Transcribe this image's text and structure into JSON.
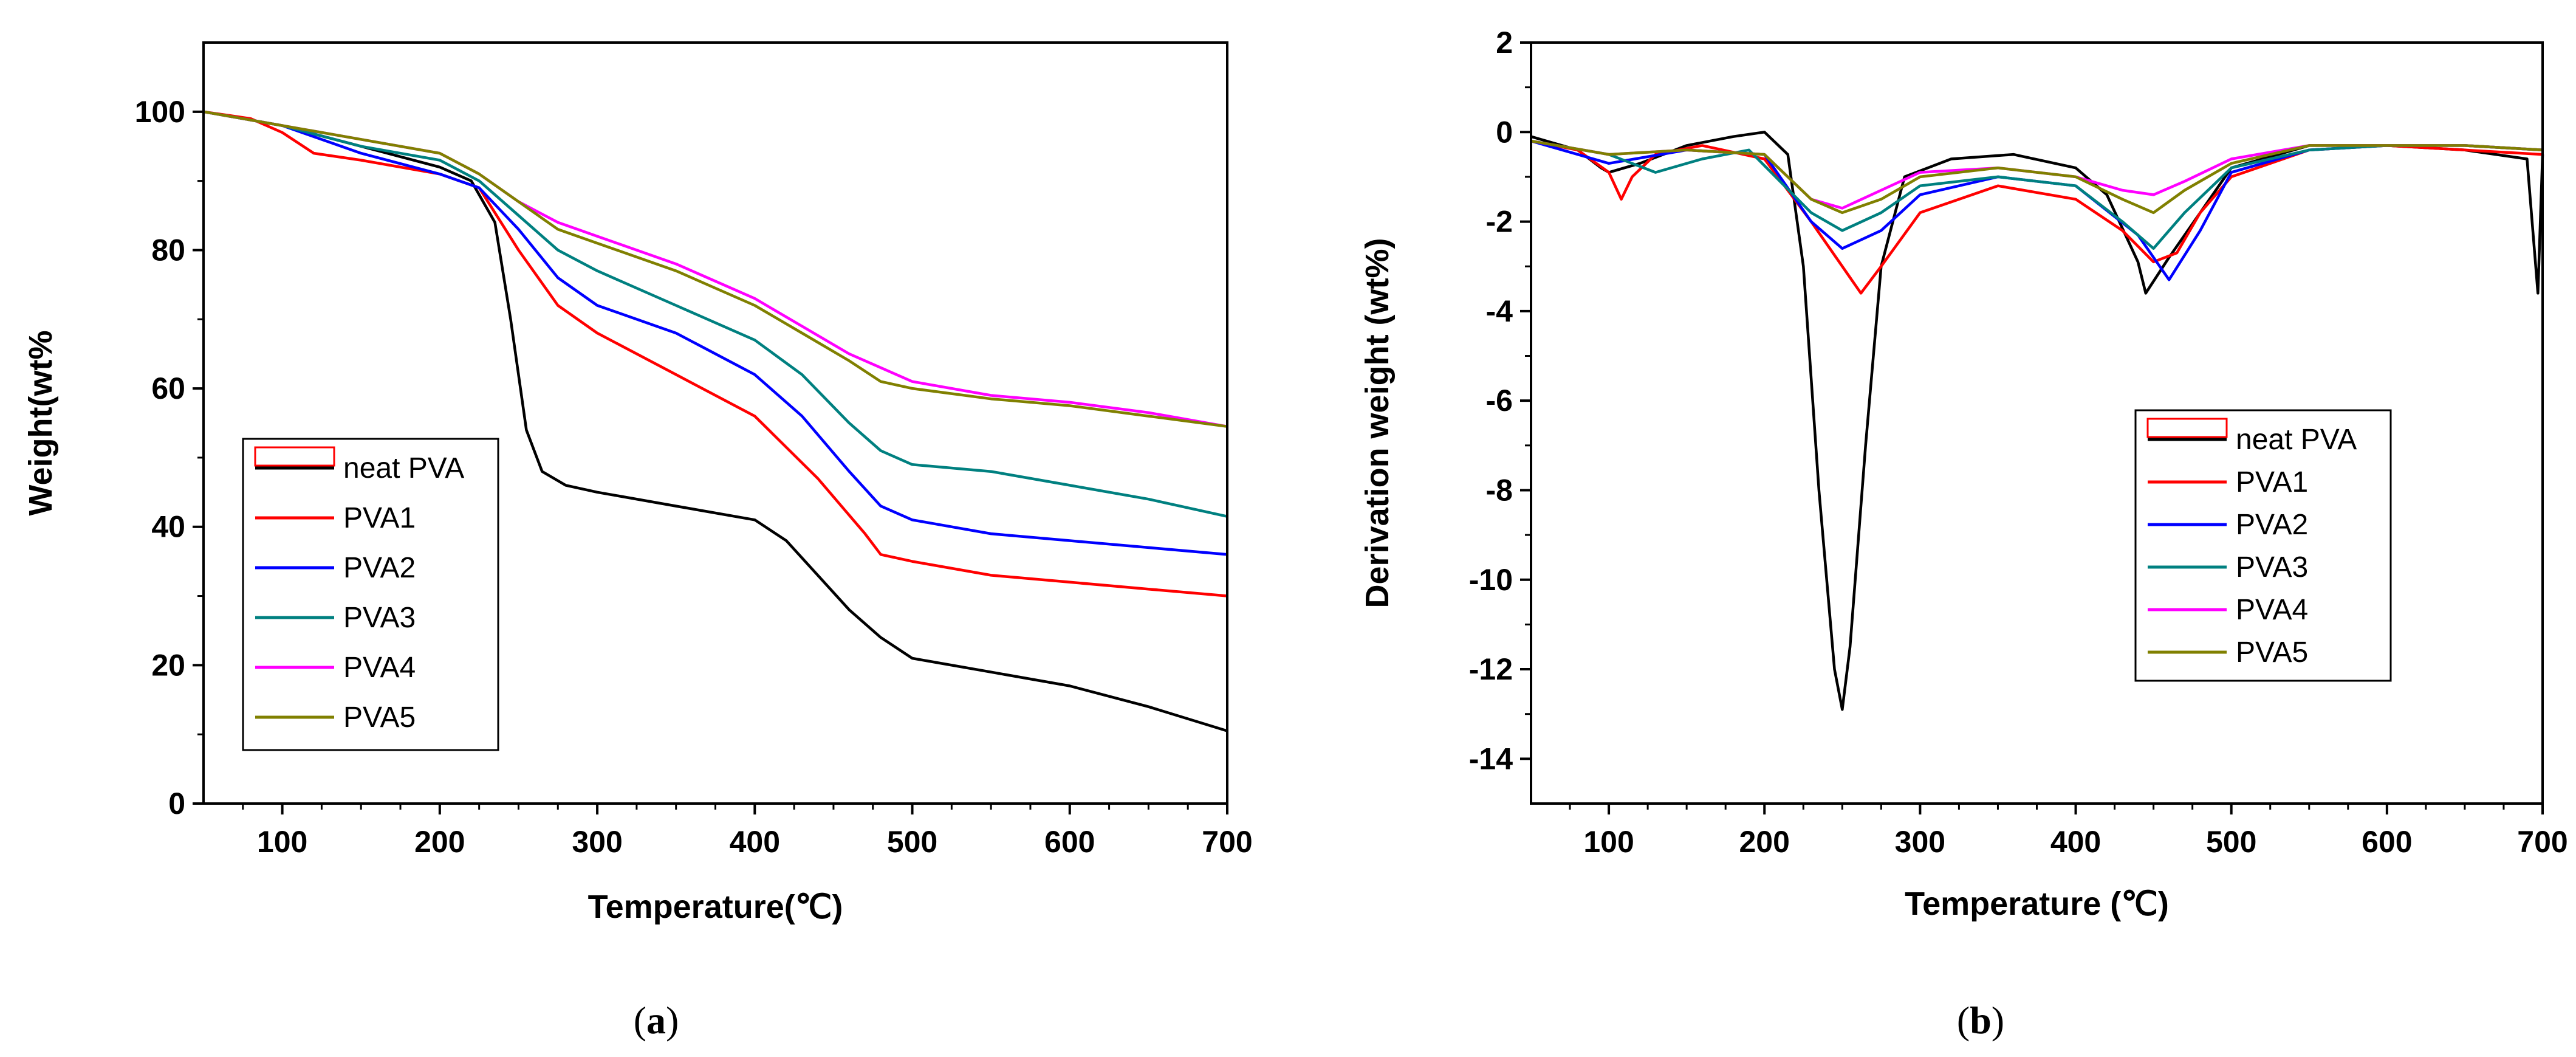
{
  "chart_data": [
    {
      "panel_label": "(a)",
      "panel_letter": "a",
      "type": "line",
      "xlabel": "Temperature(℃)",
      "ylabel": "Weight(wt%",
      "xlim": [
        50,
        700
      ],
      "ylim": [
        0,
        110
      ],
      "xticks": [
        100,
        200,
        300,
        400,
        500,
        600,
        700
      ],
      "yticks": [
        0,
        20,
        40,
        60,
        80,
        100
      ],
      "legend_position": "lower-left",
      "series": [
        {
          "name": "neat PVA",
          "color": "#000000",
          "x": [
            50,
            100,
            150,
            200,
            220,
            235,
            245,
            255,
            265,
            280,
            300,
            350,
            400,
            420,
            440,
            460,
            480,
            500,
            550,
            600,
            650,
            700
          ],
          "y": [
            100,
            98,
            95,
            92,
            90,
            84,
            70,
            54,
            48,
            46,
            45,
            43,
            41,
            38,
            33,
            28,
            24,
            21,
            19,
            17,
            14,
            10.5
          ]
        },
        {
          "name": "PVA1",
          "color": "#ff0000",
          "x": [
            50,
            80,
            100,
            120,
            150,
            200,
            225,
            250,
            275,
            300,
            350,
            400,
            440,
            470,
            480,
            500,
            550,
            600,
            650,
            700
          ],
          "y": [
            100,
            99,
            97,
            94,
            93,
            91,
            89,
            80,
            72,
            68,
            62,
            56,
            47,
            39,
            36,
            35,
            33,
            32,
            31,
            30
          ]
        },
        {
          "name": "PVA2",
          "color": "#0000ff",
          "x": [
            50,
            100,
            150,
            200,
            225,
            250,
            275,
            300,
            350,
            400,
            430,
            460,
            480,
            500,
            550,
            600,
            650,
            700
          ],
          "y": [
            100,
            98,
            94,
            91,
            89,
            83,
            76,
            72,
            68,
            62,
            56,
            48,
            43,
            41,
            39,
            38,
            37,
            36
          ]
        },
        {
          "name": "PVA3",
          "color": "#008080",
          "x": [
            50,
            100,
            150,
            200,
            225,
            250,
            275,
            300,
            350,
            400,
            430,
            460,
            480,
            500,
            550,
            600,
            650,
            700
          ],
          "y": [
            100,
            98,
            95,
            93,
            90,
            85,
            80,
            77,
            72,
            67,
            62,
            55,
            51,
            49,
            48,
            46,
            44,
            41.5
          ]
        },
        {
          "name": "PVA4",
          "color": "#ff00ff",
          "x": [
            50,
            100,
            150,
            200,
            225,
            250,
            275,
            300,
            350,
            400,
            430,
            460,
            480,
            500,
            550,
            600,
            650,
            700
          ],
          "y": [
            100,
            98,
            96,
            94,
            91,
            87,
            84,
            82,
            78,
            73,
            69,
            65,
            63,
            61,
            59,
            58,
            56.5,
            54.5
          ]
        },
        {
          "name": "PVA5",
          "color": "#808000",
          "x": [
            50,
            100,
            150,
            200,
            225,
            250,
            275,
            300,
            350,
            400,
            430,
            460,
            480,
            500,
            550,
            600,
            650,
            700
          ],
          "y": [
            100,
            98,
            96,
            94,
            91,
            87,
            83,
            81,
            77,
            72,
            68,
            64,
            61,
            60,
            58.5,
            57.5,
            56,
            54.5
          ]
        }
      ]
    },
    {
      "panel_label": "(b)",
      "panel_letter": "b",
      "type": "line",
      "xlabel": "Temperature (℃)",
      "ylabel": "Derivation weight (wt%)",
      "xlim": [
        50,
        700
      ],
      "ylim": [
        -15,
        2
      ],
      "xticks": [
        100,
        200,
        300,
        400,
        500,
        600,
        700
      ],
      "yticks": [
        -14,
        -12,
        -10,
        -8,
        -6,
        -4,
        -2,
        0,
        2
      ],
      "legend_position": "center-right",
      "series": [
        {
          "name": "neat PVA",
          "color": "#000000",
          "x": [
            50,
            80,
            95,
            100,
            120,
            150,
            180,
            200,
            215,
            225,
            235,
            245,
            250,
            255,
            265,
            275,
            290,
            320,
            360,
            400,
            420,
            440,
            445,
            460,
            480,
            500,
            550,
            600,
            650,
            690,
            697,
            700
          ],
          "y": [
            -0.1,
            -0.4,
            -0.8,
            -0.9,
            -0.7,
            -0.3,
            -0.1,
            0,
            -0.5,
            -3,
            -8,
            -12,
            -12.9,
            -11.5,
            -7,
            -3,
            -1,
            -0.6,
            -0.5,
            -0.8,
            -1.4,
            -2.9,
            -3.6,
            -2.8,
            -1.8,
            -0.8,
            -0.3,
            -0.3,
            -0.4,
            -0.6,
            -3.6,
            -0.5
          ]
        },
        {
          "name": "PVA1",
          "color": "#ff0000",
          "x": [
            50,
            80,
            100,
            108,
            115,
            130,
            160,
            200,
            230,
            250,
            262,
            275,
            300,
            350,
            400,
            430,
            450,
            465,
            480,
            500,
            550,
            600,
            650,
            700
          ],
          "y": [
            -0.2,
            -0.4,
            -0.9,
            -1.5,
            -1.0,
            -0.5,
            -0.3,
            -0.6,
            -2.0,
            -3.0,
            -3.6,
            -3.0,
            -1.8,
            -1.2,
            -1.5,
            -2.2,
            -2.9,
            -2.7,
            -1.8,
            -1.0,
            -0.4,
            -0.3,
            -0.4,
            -0.5
          ]
        },
        {
          "name": "PVA2",
          "color": "#0000ff",
          "x": [
            50,
            100,
            150,
            200,
            230,
            250,
            275,
            300,
            350,
            400,
            440,
            460,
            480,
            500,
            550,
            600,
            650,
            700
          ],
          "y": [
            -0.2,
            -0.7,
            -0.4,
            -0.5,
            -2.0,
            -2.6,
            -2.2,
            -1.4,
            -1.0,
            -1.2,
            -2.3,
            -3.3,
            -2.2,
            -0.9,
            -0.4,
            -0.3,
            -0.3,
            -0.4
          ]
        },
        {
          "name": "PVA3",
          "color": "#008080",
          "x": [
            50,
            100,
            130,
            160,
            190,
            230,
            250,
            275,
            300,
            350,
            400,
            430,
            450,
            470,
            500,
            550,
            600,
            650,
            700
          ],
          "y": [
            -0.2,
            -0.5,
            -0.9,
            -0.6,
            -0.4,
            -1.8,
            -2.2,
            -1.8,
            -1.2,
            -1.0,
            -1.2,
            -2.0,
            -2.6,
            -1.8,
            -0.8,
            -0.4,
            -0.3,
            -0.3,
            -0.4
          ]
        },
        {
          "name": "PVA4",
          "color": "#ff00ff",
          "x": [
            50,
            100,
            150,
            200,
            230,
            250,
            275,
            300,
            350,
            400,
            430,
            450,
            470,
            500,
            550,
            600,
            650,
            700
          ],
          "y": [
            -0.2,
            -0.5,
            -0.4,
            -0.5,
            -1.5,
            -1.7,
            -1.3,
            -0.9,
            -0.8,
            -1.0,
            -1.3,
            -1.4,
            -1.1,
            -0.6,
            -0.3,
            -0.3,
            -0.3,
            -0.4
          ]
        },
        {
          "name": "PVA5",
          "color": "#808000",
          "x": [
            50,
            100,
            150,
            200,
            230,
            250,
            275,
            300,
            350,
            400,
            430,
            450,
            470,
            500,
            550,
            600,
            650,
            700
          ],
          "y": [
            -0.2,
            -0.5,
            -0.4,
            -0.5,
            -1.5,
            -1.8,
            -1.5,
            -1.0,
            -0.8,
            -1.0,
            -1.5,
            -1.8,
            -1.3,
            -0.7,
            -0.3,
            -0.3,
            -0.3,
            -0.4
          ]
        }
      ]
    }
  ]
}
